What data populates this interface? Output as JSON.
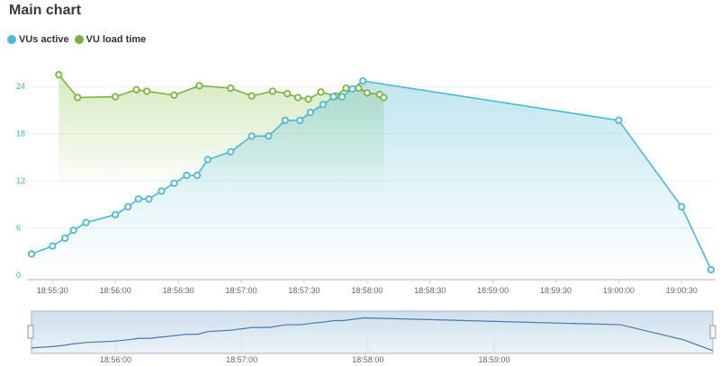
{
  "title": "Main chart",
  "legend": [
    {
      "label": "VUs active",
      "color": "#4db8d3"
    },
    {
      "label": "VU load time",
      "color": "#7cb342"
    }
  ],
  "chart_data": {
    "type": "line",
    "title": "Main chart",
    "grid": true,
    "legend_position": "top-left",
    "y_ticks": [
      "0",
      "6",
      "12",
      "18",
      "24"
    ],
    "ylim": [
      0,
      27
    ],
    "x_ticks": [
      "18:55:30",
      "18:56:00",
      "18:56:30",
      "18:57:00",
      "18:57:30",
      "18:58:00",
      "18:58:30",
      "18:59:00",
      "18:59:30",
      "19:00:00",
      "19:00:30"
    ],
    "xlim": [
      "18:55:20",
      "19:00:44"
    ],
    "series": [
      {
        "name": "VUs active",
        "color": "#4db8d3",
        "fill": "gradient",
        "points": [
          [
            "18:55:20",
            2.7
          ],
          [
            "18:55:30",
            3.7
          ],
          [
            "18:55:36",
            4.7
          ],
          [
            "18:55:40",
            5.7
          ],
          [
            "18:55:46",
            6.7
          ],
          [
            "18:56:00",
            7.7
          ],
          [
            "18:56:06",
            8.7
          ],
          [
            "18:56:11",
            9.7
          ],
          [
            "18:56:16",
            9.7
          ],
          [
            "18:56:22",
            10.7
          ],
          [
            "18:56:28",
            11.7
          ],
          [
            "18:56:34",
            12.7
          ],
          [
            "18:56:39",
            12.7
          ],
          [
            "18:56:44",
            14.7
          ],
          [
            "18:56:55",
            15.7
          ],
          [
            "18:57:05",
            17.7
          ],
          [
            "18:57:13",
            17.7
          ],
          [
            "18:57:21",
            19.7
          ],
          [
            "18:57:28",
            19.7
          ],
          [
            "18:57:33",
            20.7
          ],
          [
            "18:57:39",
            21.7
          ],
          [
            "18:57:44",
            22.7
          ],
          [
            "18:57:48",
            22.7
          ],
          [
            "18:57:53",
            23.7
          ],
          [
            "18:57:58",
            24.7
          ],
          [
            "19:00:00",
            19.7
          ],
          [
            "19:00:30",
            8.7
          ],
          [
            "19:00:44",
            0.7
          ]
        ]
      },
      {
        "name": "VU load time",
        "color": "#7cb342",
        "fill": "gradient",
        "points": [
          [
            "18:55:33",
            25.5
          ],
          [
            "18:55:42",
            22.6
          ],
          [
            "18:56:00",
            22.7
          ],
          [
            "18:56:10",
            23.6
          ],
          [
            "18:56:15",
            23.4
          ],
          [
            "18:56:28",
            22.9
          ],
          [
            "18:56:40",
            24.1
          ],
          [
            "18:56:55",
            23.8
          ],
          [
            "18:57:05",
            22.8
          ],
          [
            "18:57:15",
            23.4
          ],
          [
            "18:57:22",
            23.1
          ],
          [
            "18:57:27",
            22.6
          ],
          [
            "18:57:32",
            22.4
          ],
          [
            "18:57:38",
            23.3
          ],
          [
            "18:57:45",
            22.8
          ],
          [
            "18:57:50",
            23.8
          ],
          [
            "18:57:56",
            23.8
          ],
          [
            "18:58:00",
            23.2
          ],
          [
            "18:58:06",
            23.0
          ],
          [
            "18:58:08",
            22.6
          ]
        ]
      }
    ]
  },
  "navigator": {
    "ticks": [
      "18:56:00",
      "18:57:00",
      "18:58:00",
      "18:59:00"
    ]
  }
}
